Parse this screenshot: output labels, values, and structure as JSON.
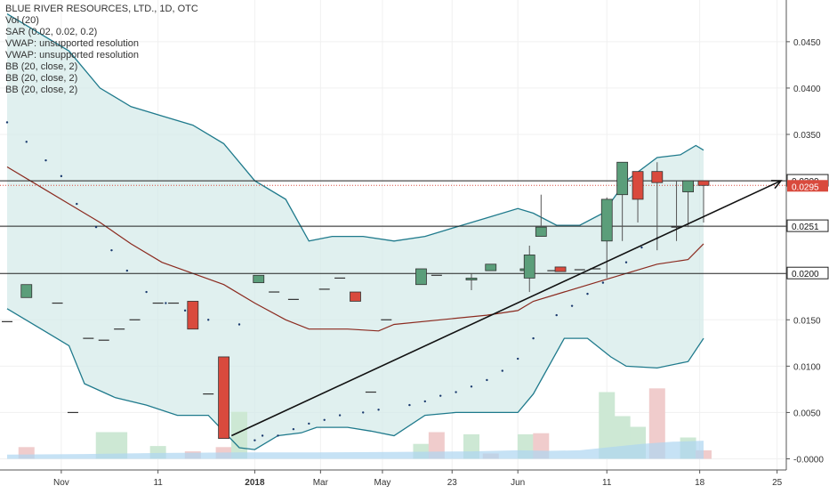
{
  "legend": {
    "title": "BLUE RIVER RESOURCES, LTD., 1D, OTC",
    "vol": "Vol (20)",
    "sar": "SAR (0.02, 0.02, 0.2)",
    "vwap1": "VWAP: unsupported resolution",
    "vwap2": "VWAP: unsupported resolution",
    "bb1": "BB (20, close, 2)",
    "bb2": "BB (20, close, 2)",
    "bb3": "BB (20, close, 2)"
  },
  "colors": {
    "up": "#5b9e7a",
    "down": "#d94a3d",
    "bb_band": "#1f7a8c",
    "bb_basis": "#8b2a1f",
    "bb_fill": "#d6ebea",
    "vol_up": "#cde8d4",
    "vol_down": "#f0cccc",
    "vol_ma": "#aed6f1",
    "price_label": "#d94a3d"
  },
  "chart_data": {
    "type": "candlestick",
    "title": "BLUE RIVER RESOURCES, LTD., 1D, OTC",
    "x_tick_labels": [
      "Nov",
      "11",
      "2018",
      "Mar",
      "May",
      "23",
      "Jun",
      "11",
      "18",
      "25"
    ],
    "y_tick_labels": [
      "0.0450",
      "0.0400",
      "0.0350",
      "0.0300",
      "0.0250",
      "0.0200",
      "0.0150",
      "0.0100",
      "0.0050",
      "-0.0000"
    ],
    "ylim": [
      -0.0012,
      0.0495
    ],
    "xlim": [
      0,
      100
    ],
    "x_ticks": [
      {
        "label": "Nov",
        "x": 7
      },
      {
        "label": "11",
        "x": 19.5
      },
      {
        "label": "2018",
        "x": 32
      },
      {
        "label": "Mar",
        "x": 40.5
      },
      {
        "label": "May",
        "x": 48.5
      },
      {
        "label": "23",
        "x": 57.5
      },
      {
        "label": "Jun",
        "x": 66
      },
      {
        "label": "11",
        "x": 77.5
      },
      {
        "label": "18",
        "x": 89.5
      },
      {
        "label": "25",
        "x": 99.5
      }
    ],
    "candles": [
      {
        "x": 0,
        "o": 0.0148,
        "h": 0.0148,
        "l": 0.0148,
        "c": 0.0148
      },
      {
        "x": 2.5,
        "o": 0.0174,
        "h": 0.0188,
        "l": 0.0174,
        "c": 0.0188
      },
      {
        "x": 6.5,
        "o": 0.0168,
        "h": 0.0168,
        "l": 0.0168,
        "c": 0.0168
      },
      {
        "x": 8.5,
        "o": 0.005,
        "h": 0.005,
        "l": 0.005,
        "c": 0.005
      },
      {
        "x": 10.5,
        "o": 0.013,
        "h": 0.013,
        "l": 0.013,
        "c": 0.013
      },
      {
        "x": 12.5,
        "o": 0.0128,
        "h": 0.0128,
        "l": 0.0128,
        "c": 0.0128
      },
      {
        "x": 14.5,
        "o": 0.014,
        "h": 0.014,
        "l": 0.014,
        "c": 0.014
      },
      {
        "x": 16.5,
        "o": 0.015,
        "h": 0.015,
        "l": 0.015,
        "c": 0.015
      },
      {
        "x": 19.5,
        "o": 0.0168,
        "h": 0.0168,
        "l": 0.0168,
        "c": 0.0168
      },
      {
        "x": 21.5,
        "o": 0.0168,
        "h": 0.0168,
        "l": 0.0168,
        "c": 0.0168
      },
      {
        "x": 24,
        "o": 0.017,
        "h": 0.017,
        "l": 0.014,
        "c": 0.014
      },
      {
        "x": 26,
        "o": 0.007,
        "h": 0.007,
        "l": 0.007,
        "c": 0.007
      },
      {
        "x": 28,
        "o": 0.011,
        "h": 0.011,
        "l": 0.0022,
        "c": 0.0022
      },
      {
        "x": 32.5,
        "o": 0.019,
        "h": 0.0198,
        "l": 0.019,
        "c": 0.0198
      },
      {
        "x": 34.5,
        "o": 0.018,
        "h": 0.018,
        "l": 0.018,
        "c": 0.018
      },
      {
        "x": 37,
        "o": 0.0172,
        "h": 0.0172,
        "l": 0.0172,
        "c": 0.0172
      },
      {
        "x": 41,
        "o": 0.0183,
        "h": 0.0183,
        "l": 0.0183,
        "c": 0.0183
      },
      {
        "x": 43,
        "o": 0.0195,
        "h": 0.0195,
        "l": 0.0195,
        "c": 0.0195
      },
      {
        "x": 45,
        "o": 0.018,
        "h": 0.018,
        "l": 0.017,
        "c": 0.017
      },
      {
        "x": 47,
        "o": 0.0072,
        "h": 0.0072,
        "l": 0.0072,
        "c": 0.0072
      },
      {
        "x": 49,
        "o": 0.015,
        "h": 0.015,
        "l": 0.015,
        "c": 0.015
      },
      {
        "x": 53.5,
        "o": 0.0188,
        "h": 0.0205,
        "l": 0.0188,
        "c": 0.0205
      },
      {
        "x": 55.5,
        "o": 0.0198,
        "h": 0.0198,
        "l": 0.0198,
        "c": 0.0198
      },
      {
        "x": 60,
        "o": 0.0193,
        "h": 0.02,
        "l": 0.0182,
        "c": 0.0195
      },
      {
        "x": 62.5,
        "o": 0.0203,
        "h": 0.021,
        "l": 0.0203,
        "c": 0.021
      },
      {
        "x": 67,
        "o": 0.0203,
        "h": 0.0212,
        "l": 0.0198,
        "c": 0.0205
      },
      {
        "x": 67.5,
        "o": 0.0195,
        "h": 0.023,
        "l": 0.018,
        "c": 0.022
      },
      {
        "x": 69,
        "o": 0.024,
        "h": 0.0285,
        "l": 0.024,
        "c": 0.025
      },
      {
        "x": 70.5,
        "o": 0.0203,
        "h": 0.0203,
        "l": 0.0203,
        "c": 0.0203
      },
      {
        "x": 71.5,
        "o": 0.0207,
        "h": 0.0207,
        "l": 0.0202,
        "c": 0.0202
      },
      {
        "x": 74,
        "o": 0.0204,
        "h": 0.0204,
        "l": 0.0204,
        "c": 0.0204
      },
      {
        "x": 76,
        "o": 0.0205,
        "h": 0.0205,
        "l": 0.0205,
        "c": 0.0205
      },
      {
        "x": 77.5,
        "o": 0.0235,
        "h": 0.0282,
        "l": 0.0195,
        "c": 0.028
      },
      {
        "x": 79.5,
        "o": 0.0285,
        "h": 0.032,
        "l": 0.0235,
        "c": 0.032
      },
      {
        "x": 81.5,
        "o": 0.031,
        "h": 0.031,
        "l": 0.0255,
        "c": 0.028
      },
      {
        "x": 84,
        "o": 0.031,
        "h": 0.032,
        "l": 0.0225,
        "c": 0.0298
      },
      {
        "x": 86.5,
        "o": 0.025,
        "h": 0.03,
        "l": 0.0235,
        "c": 0.025
      },
      {
        "x": 88,
        "o": 0.0288,
        "h": 0.03,
        "l": 0.025,
        "c": 0.03
      },
      {
        "x": 90,
        "o": 0.03,
        "h": 0.03,
        "l": 0.0255,
        "c": 0.0295
      }
    ],
    "bb_upper": [
      [
        0,
        0.048
      ],
      [
        4,
        0.046
      ],
      [
        8,
        0.044
      ],
      [
        12,
        0.04
      ],
      [
        16,
        0.038
      ],
      [
        20,
        0.037
      ],
      [
        24,
        0.036
      ],
      [
        28,
        0.034
      ],
      [
        32,
        0.03
      ],
      [
        36,
        0.028
      ],
      [
        39,
        0.0235
      ],
      [
        42,
        0.024
      ],
      [
        46,
        0.024
      ],
      [
        50,
        0.0235
      ],
      [
        54,
        0.024
      ],
      [
        58,
        0.025
      ],
      [
        62,
        0.026
      ],
      [
        66,
        0.027
      ],
      [
        68,
        0.0265
      ],
      [
        71,
        0.0252
      ],
      [
        74,
        0.0252
      ],
      [
        77,
        0.0265
      ],
      [
        80,
        0.03
      ],
      [
        84,
        0.0325
      ],
      [
        87,
        0.0328
      ],
      [
        89,
        0.0338
      ],
      [
        90,
        0.0333
      ]
    ],
    "bb_lower": [
      [
        0,
        0.0162
      ],
      [
        4,
        0.0142
      ],
      [
        8,
        0.0122
      ],
      [
        10,
        0.0081
      ],
      [
        14,
        0.0066
      ],
      [
        18,
        0.0058
      ],
      [
        22,
        0.0047
      ],
      [
        26,
        0.0047
      ],
      [
        30,
        0.0012
      ],
      [
        32,
        0.001
      ],
      [
        35,
        0.0025
      ],
      [
        38,
        0.0028
      ],
      [
        40,
        0.0034
      ],
      [
        44,
        0.0034
      ],
      [
        47,
        0.003
      ],
      [
        50,
        0.0025
      ],
      [
        54,
        0.0047
      ],
      [
        58,
        0.005
      ],
      [
        62,
        0.005
      ],
      [
        66,
        0.005
      ],
      [
        68,
        0.007
      ],
      [
        72,
        0.013
      ],
      [
        75,
        0.013
      ],
      [
        78,
        0.011
      ],
      [
        80,
        0.01
      ],
      [
        84,
        0.0098
      ],
      [
        88,
        0.0105
      ],
      [
        90,
        0.013
      ]
    ],
    "bb_basis": [
      [
        0,
        0.0315
      ],
      [
        4,
        0.0295
      ],
      [
        8,
        0.0275
      ],
      [
        12,
        0.0255
      ],
      [
        16,
        0.0232
      ],
      [
        20,
        0.0212
      ],
      [
        24,
        0.02
      ],
      [
        28,
        0.0188
      ],
      [
        32,
        0.0168
      ],
      [
        36,
        0.015
      ],
      [
        39,
        0.014
      ],
      [
        44,
        0.014
      ],
      [
        48,
        0.0138
      ],
      [
        50,
        0.0145
      ],
      [
        56,
        0.015
      ],
      [
        62,
        0.0155
      ],
      [
        66,
        0.016
      ],
      [
        68,
        0.017
      ],
      [
        72,
        0.018
      ],
      [
        76,
        0.019
      ],
      [
        80,
        0.02
      ],
      [
        84,
        0.021
      ],
      [
        88,
        0.0215
      ],
      [
        90,
        0.0232
      ]
    ],
    "sar": [
      [
        0,
        0.0363
      ],
      [
        2.5,
        0.0342
      ],
      [
        5,
        0.0322
      ],
      [
        7,
        0.0305
      ],
      [
        9,
        0.0275
      ],
      [
        11.5,
        0.025
      ],
      [
        13.5,
        0.0225
      ],
      [
        15.5,
        0.0203
      ],
      [
        18,
        0.018
      ],
      [
        20.5,
        0.0168
      ],
      [
        23,
        0.016
      ],
      [
        26,
        0.015
      ],
      [
        30,
        0.0145
      ],
      [
        32,
        0.002
      ],
      [
        33,
        0.0025
      ],
      [
        35,
        0.0025
      ],
      [
        37,
        0.0032
      ],
      [
        39,
        0.0038
      ],
      [
        41,
        0.0042
      ],
      [
        43,
        0.0047
      ],
      [
        46,
        0.005
      ],
      [
        48,
        0.0053
      ],
      [
        52,
        0.0058
      ],
      [
        54,
        0.0062
      ],
      [
        56,
        0.0068
      ],
      [
        58,
        0.0072
      ],
      [
        60,
        0.0078
      ],
      [
        62,
        0.0085
      ],
      [
        64,
        0.0095
      ],
      [
        66,
        0.0108
      ],
      [
        68,
        0.013
      ],
      [
        71,
        0.0155
      ],
      [
        73,
        0.0165
      ],
      [
        75,
        0.0178
      ],
      [
        77,
        0.019
      ],
      [
        80,
        0.0212
      ],
      [
        82,
        0.0228
      ],
      [
        84,
        0.0238
      ]
    ],
    "trendline": [
      [
        29,
        0.0025
      ],
      [
        100,
        0.03
      ]
    ],
    "hlines": [
      0.03,
      0.0251,
      0.02
    ],
    "price_marker": 0.0295,
    "hline_labels": [
      "0.0300",
      "0.0251",
      "0.0200"
    ],
    "price_label": "0.0295",
    "volume": [
      {
        "x": 2.5,
        "v": 22,
        "up": false
      },
      {
        "x": 12.5,
        "v": 50,
        "up": true
      },
      {
        "x": 14.5,
        "v": 50,
        "up": true
      },
      {
        "x": 19.5,
        "v": 24,
        "up": true
      },
      {
        "x": 24,
        "v": 14,
        "up": false
      },
      {
        "x": 28,
        "v": 22,
        "up": false
      },
      {
        "x": 30,
        "v": 88,
        "up": true
      },
      {
        "x": 53.5,
        "v": 28,
        "up": true
      },
      {
        "x": 55.5,
        "v": 50,
        "up": false
      },
      {
        "x": 60,
        "v": 46,
        "up": true
      },
      {
        "x": 62.5,
        "v": 10,
        "up": false
      },
      {
        "x": 67,
        "v": 46,
        "up": true
      },
      {
        "x": 69,
        "v": 48,
        "up": false
      },
      {
        "x": 77.5,
        "v": 125,
        "up": true
      },
      {
        "x": 79.5,
        "v": 80,
        "up": true
      },
      {
        "x": 81.5,
        "v": 60,
        "up": true
      },
      {
        "x": 84,
        "v": 132,
        "up": false
      },
      {
        "x": 88,
        "v": 40,
        "up": true
      },
      {
        "x": 90,
        "v": 16,
        "up": false
      }
    ],
    "volume_ma": [
      [
        0,
        8
      ],
      [
        10,
        9
      ],
      [
        20,
        11
      ],
      [
        30,
        12
      ],
      [
        40,
        12
      ],
      [
        50,
        13
      ],
      [
        60,
        14
      ],
      [
        66,
        16
      ],
      [
        70,
        15
      ],
      [
        74,
        16
      ],
      [
        78,
        22
      ],
      [
        82,
        28
      ],
      [
        86,
        32
      ],
      [
        90,
        34
      ]
    ]
  }
}
